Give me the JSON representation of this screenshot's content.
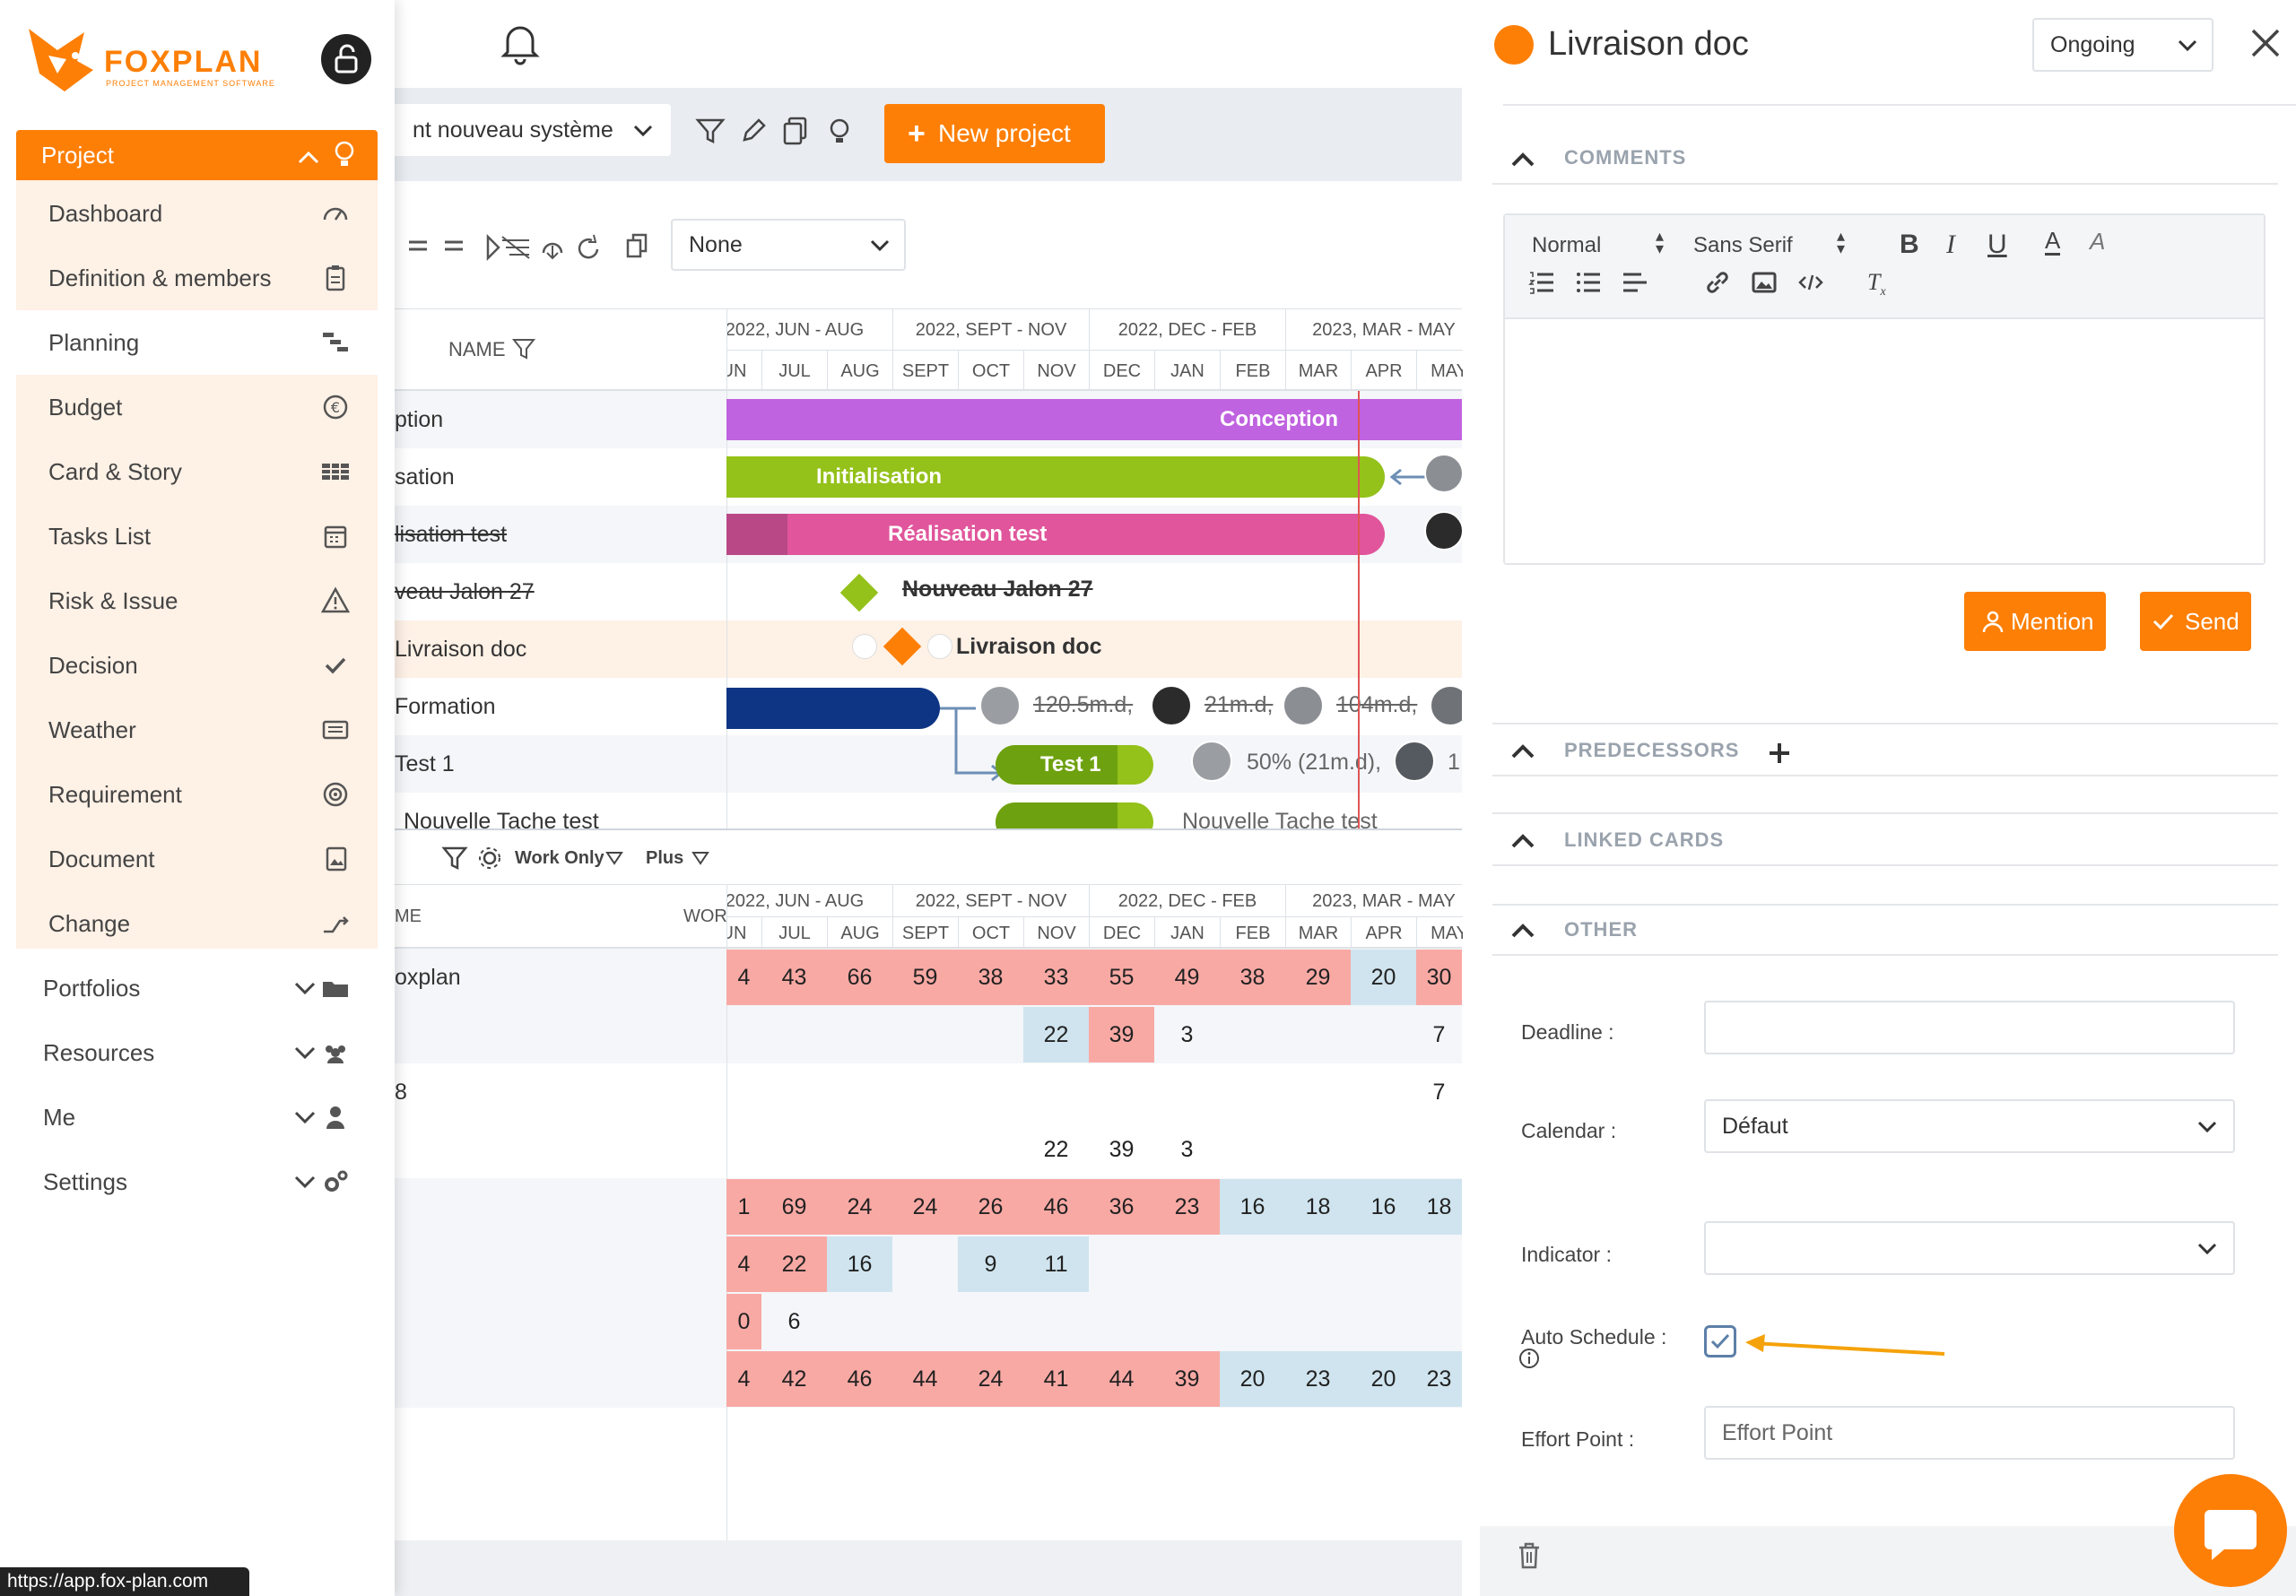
{
  "sidebar": {
    "logo_word": "FOXPLAN",
    "logo_tagline": "PROJECT MANAGEMENT SOFTWARE",
    "project_label": "Project",
    "items": [
      {
        "label": "Dashboard",
        "icon": "gauge-icon"
      },
      {
        "label": "Definition & members",
        "icon": "clipboard-icon"
      },
      {
        "label": "Planning",
        "icon": "gantt-icon"
      },
      {
        "label": "Budget",
        "icon": "euro-icon"
      },
      {
        "label": "Card & Story",
        "icon": "grid-icon"
      },
      {
        "label": "Tasks List",
        "icon": "calendar-icon"
      },
      {
        "label": "Risk & Issue",
        "icon": "warning-icon"
      },
      {
        "label": "Decision",
        "icon": "check-icon"
      },
      {
        "label": "Weather",
        "icon": "list-card-icon"
      },
      {
        "label": "Requirement",
        "icon": "target-icon"
      },
      {
        "label": "Document",
        "icon": "image-doc-icon"
      },
      {
        "label": "Change",
        "icon": "change-icon"
      }
    ],
    "active_item": "Planning",
    "sections": [
      {
        "label": "Portfolios",
        "icon": "folder-icon"
      },
      {
        "label": "Resources",
        "icon": "users-icon"
      },
      {
        "label": "Me",
        "icon": "user-icon"
      },
      {
        "label": "Settings",
        "icon": "gears-icon"
      }
    ]
  },
  "status_url": "https://app.fox-plan.com",
  "main": {
    "project_select": "nt nouveau système",
    "new_project_label": "New project",
    "filter_select": "None",
    "name_header": "NAME",
    "periods": [
      "2022, JUN - AUG",
      "2022, SEPT - NOV",
      "2022, DEC - FEB",
      "2023, MAR - MAY"
    ],
    "months": [
      "JUN",
      "JUL",
      "AUG",
      "SEPT",
      "OCT",
      "NOV",
      "DEC",
      "JAN",
      "FEB",
      "MAR",
      "APR",
      "MAY"
    ],
    "tasks": [
      {
        "name": "ption",
        "bar": "Conception"
      },
      {
        "name": "sation",
        "bar": "Initialisation"
      },
      {
        "name": "lisation test",
        "bar": "Réalisation test"
      },
      {
        "name": "veau Jalon 27",
        "bar": "Nouveau Jalon 27"
      },
      {
        "name": "Livraison doc",
        "bar": "Livraison doc"
      },
      {
        "name": "Formation",
        "bar": ""
      },
      {
        "name": "Test 1",
        "bar": "Test 1"
      },
      {
        "name": "Nouvelle Tache test",
        "bar": "Nouvelle Tache test"
      }
    ],
    "formation_efforts": [
      "120.5m.d,",
      "21m.d,",
      "104m.d,"
    ],
    "test1_effort": "50% (21m.d),",
    "test1_trailing": "1",
    "lower_toolbar": {
      "work_only": "Work Only",
      "plus": "Plus"
    },
    "lower_headers": {
      "name": "ME",
      "work": "WOR"
    },
    "resource_rows": [
      {
        "name": "oxplan",
        "cells": [
          "4",
          "43",
          "66",
          "59",
          "38",
          "33",
          "55",
          "49",
          "38",
          "29",
          "20",
          "30"
        ],
        "colors": [
          "p",
          "p",
          "p",
          "p",
          "p",
          "p",
          "p",
          "p",
          "p",
          "p",
          "b",
          "p"
        ]
      },
      {
        "name": "",
        "cells": [
          "",
          "",
          "",
          "",
          "",
          "22",
          "39",
          "3",
          "",
          "",
          "",
          "7"
        ],
        "colors": [
          "",
          "",
          "",
          "",
          "",
          "b",
          "p",
          "",
          "",
          "",
          "",
          ""
        ]
      },
      {
        "name": "8",
        "cells": [
          "",
          "",
          "",
          "",
          "",
          "",
          "",
          "",
          "",
          "",
          "",
          "7"
        ],
        "colors": [
          "",
          "",
          "",
          "",
          "",
          "",
          "",
          "",
          "",
          "",
          "",
          ""
        ]
      },
      {
        "name": "",
        "cells": [
          "",
          "",
          "",
          "",
          "",
          "22",
          "39",
          "3",
          "",
          "",
          "",
          ""
        ],
        "colors": [
          "",
          "",
          "",
          "",
          "",
          "",
          "",
          "",
          "",
          "",
          "",
          ""
        ]
      },
      {
        "name": "",
        "cells": [
          "1",
          "69",
          "24",
          "24",
          "26",
          "46",
          "36",
          "23",
          "16",
          "18",
          "16",
          "18"
        ],
        "colors": [
          "p",
          "p",
          "p",
          "p",
          "p",
          "p",
          "p",
          "p",
          "b",
          "b",
          "b",
          "b"
        ]
      },
      {
        "name": "",
        "cells": [
          "4",
          "22",
          "16",
          "",
          "9",
          "11",
          "",
          "",
          "",
          "",
          "",
          ""
        ],
        "colors": [
          "p",
          "p",
          "b",
          "",
          "b",
          "b",
          "",
          "",
          "",
          "",
          "",
          ""
        ]
      },
      {
        "name": "",
        "cells": [
          "0",
          "6",
          "",
          "",
          "",
          "",
          "",
          "",
          "",
          "",
          "",
          ""
        ],
        "colors": [
          "p",
          "",
          "",
          "",
          "",
          "",
          "",
          "",
          "",
          "",
          "",
          ""
        ]
      },
      {
        "name": "",
        "cells": [
          "4",
          "42",
          "46",
          "44",
          "24",
          "41",
          "44",
          "39",
          "20",
          "23",
          "20",
          "23"
        ],
        "colors": [
          "p",
          "p",
          "p",
          "p",
          "p",
          "p",
          "p",
          "p",
          "b",
          "b",
          "b",
          "b"
        ]
      }
    ]
  },
  "panel": {
    "title": "Livraison doc",
    "status": "Ongoing",
    "comments_title": "COMMENTS",
    "editor": {
      "style": "Normal",
      "font": "Sans Serif"
    },
    "mention_label": "Mention",
    "send_label": "Send",
    "predecessors_title": "PREDECESSORS",
    "linked_cards_title": "LINKED CARDS",
    "other_title": "OTHER",
    "fields": {
      "deadline_label": "Deadline :",
      "deadline_value": "",
      "calendar_label": "Calendar :",
      "calendar_value": "Défaut",
      "indicator_label": "Indicator :",
      "indicator_value": "",
      "auto_schedule_label": "Auto Schedule :",
      "auto_schedule_checked": true,
      "effort_point_label": "Effort Point :",
      "effort_point_placeholder": "Effort Point"
    }
  },
  "colors": {
    "accent": "#fd7f06",
    "conception": "#c063e0",
    "initialisation": "#94c11a",
    "realisation": "#e0559b",
    "formation": "#0d3584",
    "today_line": "#e05555"
  }
}
